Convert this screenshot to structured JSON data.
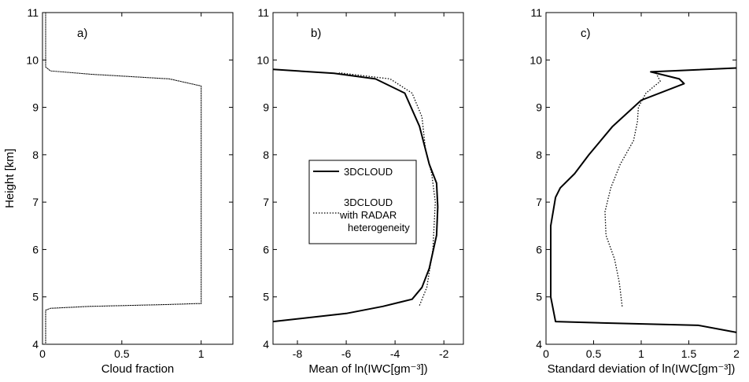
{
  "chart_data": [
    {
      "type": "line",
      "panel_label": "a)",
      "xlabel": "Cloud fraction",
      "ylabel": "Height [km]",
      "xlim": [
        0,
        1.2
      ],
      "ylim": [
        4,
        11
      ],
      "xticks": [
        0,
        0.5,
        1
      ],
      "xtick_labels": [
        "0",
        "0.5",
        "1"
      ],
      "yticks": [
        4,
        5,
        6,
        7,
        8,
        9,
        10,
        11
      ],
      "ytick_labels": [
        "4",
        "5",
        "6",
        "7",
        "8",
        "9",
        "10",
        "11"
      ],
      "grid": false,
      "series": [
        {
          "style": "solid-dotted",
          "x": [
            0.02,
            0.02,
            0.02,
            0.05,
            0.3,
            0.8,
            0.97,
            1.0,
            1.0,
            1.0,
            0.8,
            0.3,
            0.05,
            0.02,
            0.02,
            0.02
          ],
          "y": [
            4.0,
            4.4,
            4.72,
            4.76,
            4.8,
            4.84,
            4.86,
            4.86,
            9.3,
            9.45,
            9.6,
            9.7,
            9.77,
            9.85,
            9.95,
            11.0
          ]
        }
      ]
    },
    {
      "type": "line",
      "panel_label": "b)",
      "xlabel": "Mean of ln(IWC[gm⁻³])",
      "ylabel": "",
      "xlim": [
        -9,
        -1.2
      ],
      "ylim": [
        4,
        11
      ],
      "xticks": [
        -8,
        -6,
        -4,
        -2
      ],
      "xtick_labels": [
        "-8",
        "-6",
        "-4",
        "-2"
      ],
      "yticks": [
        4,
        5,
        6,
        7,
        8,
        9,
        10,
        11
      ],
      "ytick_labels": [
        "4",
        "5",
        "6",
        "7",
        "8",
        "9",
        "10",
        "11"
      ],
      "grid": false,
      "legend": {
        "placement": "center-left",
        "entries": [
          {
            "label_lines": [
              "3DCLOUD"
            ],
            "style": "solid"
          },
          {
            "label_lines": [
              "3DCLOUD",
              "with RADAR",
              "heterogeneity"
            ],
            "style": "dotted"
          }
        ]
      },
      "series": [
        {
          "name": "3DCLOUD",
          "style": "solid",
          "x": [
            -9.0,
            -6.0,
            -4.5,
            -3.3,
            -2.9,
            -2.6,
            -2.3,
            -2.25,
            -2.3,
            -2.6,
            -3.0,
            -3.6,
            -4.8,
            -6.5,
            -9.0
          ],
          "y": [
            4.48,
            4.65,
            4.8,
            4.95,
            5.2,
            5.6,
            6.3,
            6.9,
            7.4,
            7.8,
            8.6,
            9.3,
            9.6,
            9.72,
            9.8
          ]
        },
        {
          "name": "3DCLOUD with RADAR heterogeneity",
          "style": "dotted",
          "x": [
            -3.0,
            -2.7,
            -2.45,
            -2.35,
            -2.5,
            -2.75,
            -2.9,
            -3.3,
            -4.2,
            -6.3
          ],
          "y": [
            4.82,
            5.2,
            6.0,
            7.0,
            7.6,
            8.1,
            8.8,
            9.3,
            9.6,
            9.73
          ]
        }
      ]
    },
    {
      "type": "line",
      "panel_label": "c)",
      "xlabel": "Standard deviation of ln(IWC[gm⁻³])",
      "ylabel": "",
      "xlim": [
        0,
        2
      ],
      "ylim": [
        4,
        11
      ],
      "xticks": [
        0,
        0.5,
        1,
        1.5,
        2
      ],
      "xtick_labels": [
        "0",
        "0.5",
        "1",
        "1.5",
        "2"
      ],
      "yticks": [
        4,
        5,
        6,
        7,
        8,
        9,
        10,
        11
      ],
      "ytick_labels": [
        "4",
        "5",
        "6",
        "7",
        "8",
        "9",
        "10",
        "11"
      ],
      "grid": false,
      "series": [
        {
          "name": "3DCLOUD",
          "style": "solid",
          "x": [
            2.0,
            1.6,
            0.6,
            0.1,
            0.05,
            0.05,
            0.1,
            0.15,
            0.3,
            0.45,
            0.7,
            1.0,
            1.45,
            1.4,
            1.1,
            2.0
          ],
          "y": [
            4.25,
            4.4,
            4.45,
            4.48,
            5.0,
            6.5,
            7.1,
            7.3,
            7.6,
            8.0,
            8.6,
            9.15,
            9.5,
            9.6,
            9.75,
            9.83
          ]
        },
        {
          "name": "3DCLOUD with RADAR heterogeneity",
          "style": "dotted",
          "x": [
            0.8,
            0.77,
            0.72,
            0.63,
            0.62,
            0.68,
            0.78,
            0.92,
            0.96,
            0.97,
            1.05,
            1.2,
            1.15
          ],
          "y": [
            4.8,
            5.3,
            5.8,
            6.3,
            6.8,
            7.3,
            7.8,
            8.3,
            8.7,
            9.0,
            9.3,
            9.55,
            9.75
          ]
        }
      ]
    }
  ]
}
